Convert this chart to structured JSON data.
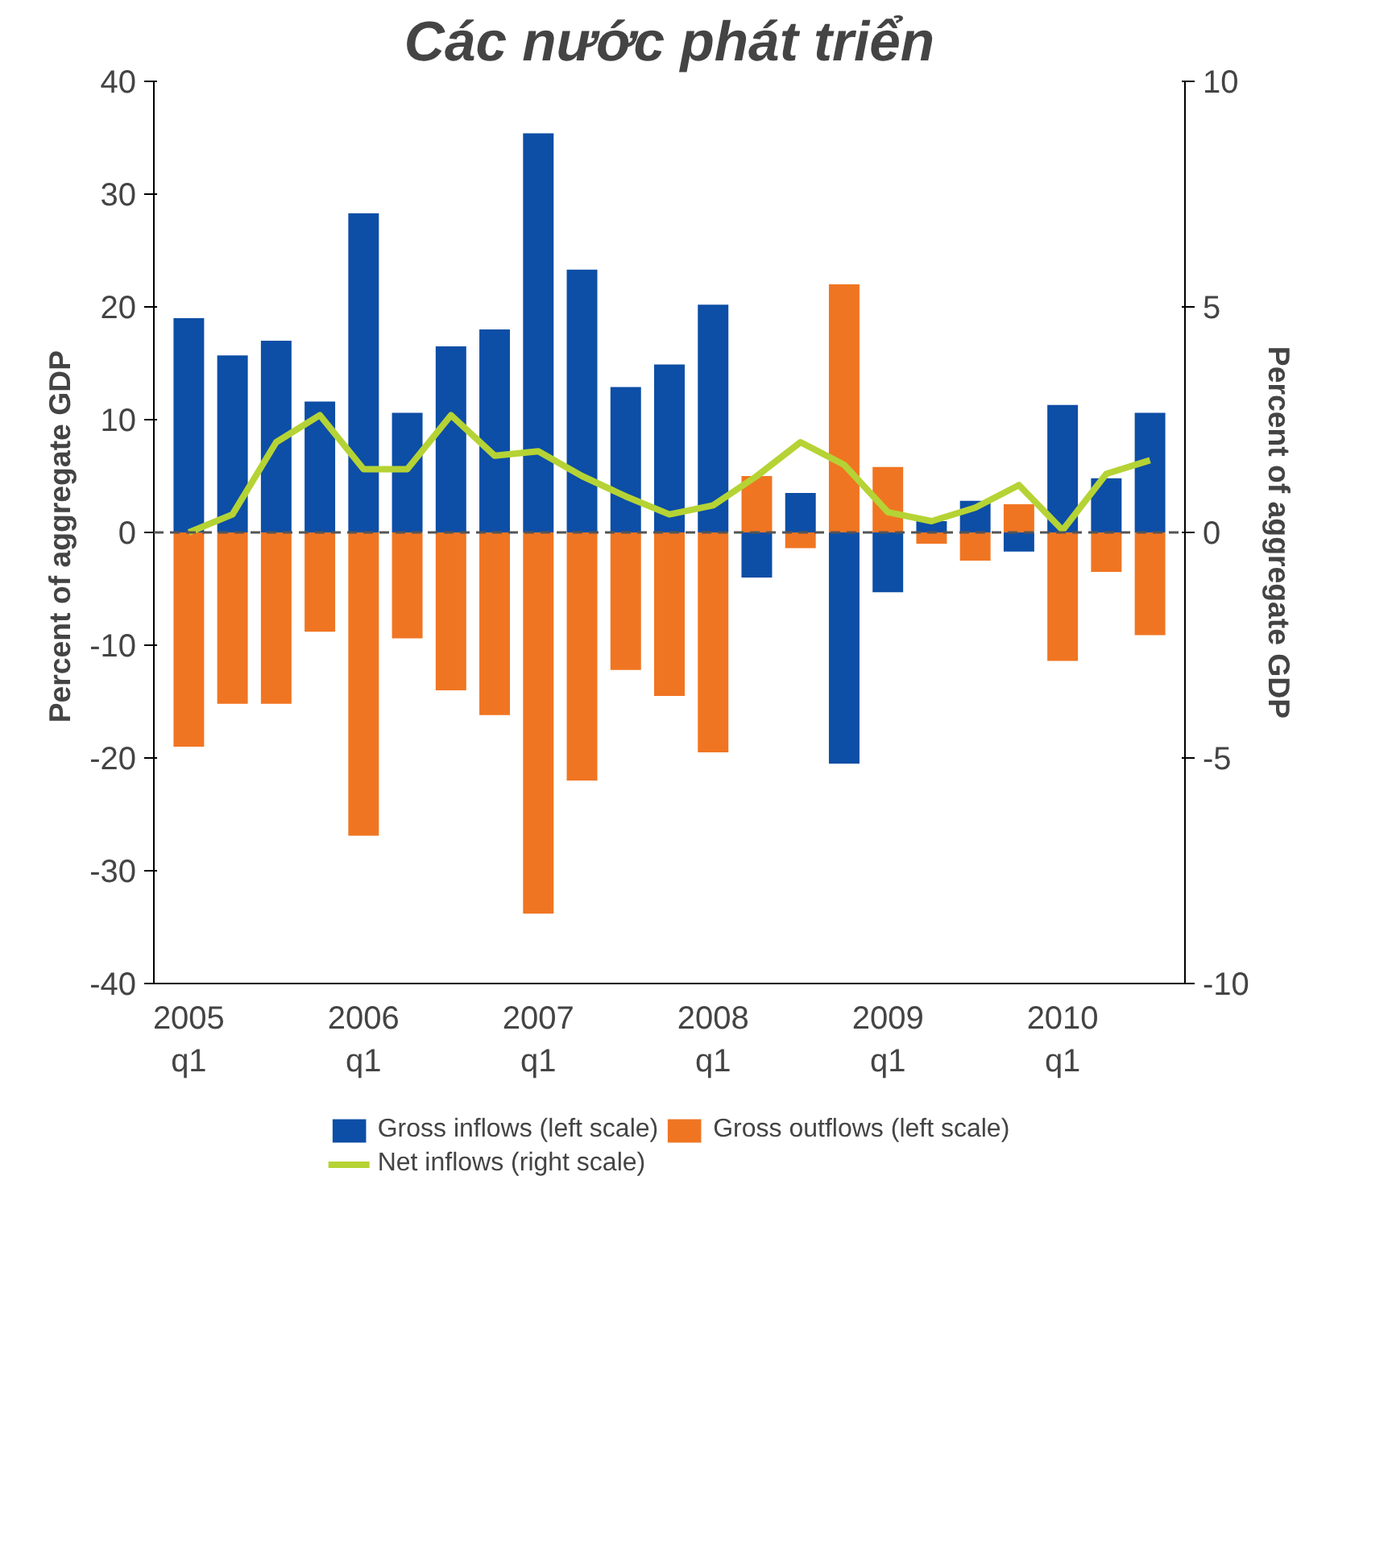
{
  "chart_data": {
    "type": "bar",
    "title": "Các nước phát triển",
    "categories": [
      "2005\nq1",
      null,
      null,
      null,
      "2006\nq1",
      null,
      null,
      null,
      "2007\nq1",
      null,
      null,
      null,
      "2008\nq1",
      null,
      null,
      null,
      "2009\nq1",
      null,
      null,
      null,
      "2010\nq1",
      null,
      null
    ],
    "series": [
      {
        "name": "Gross inflows (left scale)",
        "color": "#0d4ea6",
        "values": [
          19,
          15.7,
          17,
          11.6,
          28.3,
          10.6,
          16.5,
          18,
          35.4,
          23.3,
          12.9,
          14.9,
          20.2,
          -4,
          3.5,
          -20.5,
          -5.3,
          1,
          2.8,
          -1.7,
          11.3,
          4.8,
          10.6
        ]
      },
      {
        "name": "Gross outflows (left scale)",
        "color": "#f07522",
        "values": [
          -19,
          -15.2,
          -15.2,
          -8.8,
          -26.9,
          -9.4,
          -14,
          -16.2,
          -33.8,
          -22,
          -12.2,
          -14.5,
          -19.5,
          5,
          -1.4,
          22,
          5.8,
          -1,
          -2.5,
          2.5,
          -11.4,
          -3.5,
          -9.1
        ]
      },
      {
        "name": "Net inflows (right scale)",
        "color": "#b5d334",
        "type": "line",
        "axis": "y2",
        "values": [
          0,
          0.4,
          2.0,
          2.6,
          1.4,
          1.4,
          2.6,
          1.7,
          1.8,
          1.25,
          0.8,
          0.4,
          0.6,
          1.25,
          2.0,
          1.5,
          0.45,
          0.25,
          0.55,
          1.05,
          0.05,
          1.3,
          1.6
        ]
      }
    ],
    "ylabel": "Percent of  aggregate GDP",
    "y2label": "Percent of aggregate GDP",
    "ylim": [
      -40,
      40
    ],
    "yticks": [
      -40,
      -30,
      -20,
      -10,
      0,
      10,
      20,
      30,
      40
    ],
    "y2lim": [
      -10,
      10
    ],
    "y2ticks": [
      -10,
      -5,
      0,
      5,
      10
    ],
    "ref_lines": [
      {
        "axis": "y",
        "value": 0,
        "color": "#555555",
        "line_style": "dashed"
      }
    ],
    "grid": false,
    "legend": "bottom",
    "stacked": true
  }
}
